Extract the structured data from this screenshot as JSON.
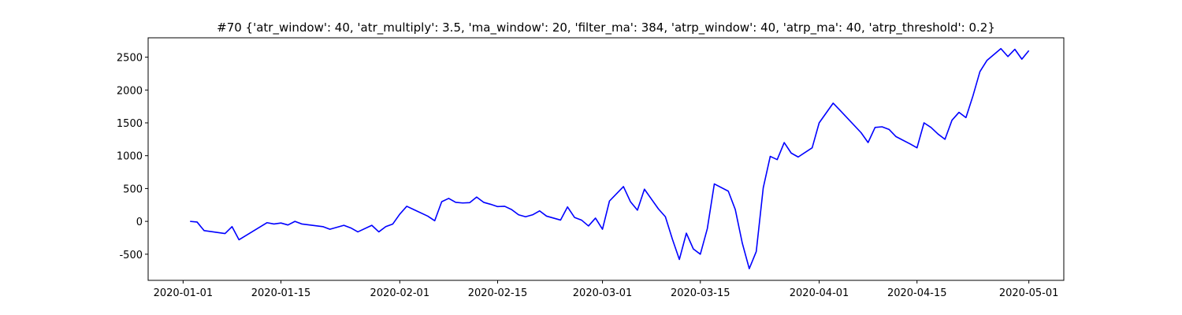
{
  "chart_data": {
    "type": "line",
    "title": "#70 {'atr_window': 40, 'atr_multiply': 3.5, 'ma_window': 20, 'filter_ma': 384, 'atrp_window': 40, 'atrp_ma': 40, 'atrp_threshold': 0.2}",
    "x": [
      "2020-01-02",
      "2020-01-03",
      "2020-01-04",
      "2020-01-07",
      "2020-01-08",
      "2020-01-09",
      "2020-01-13",
      "2020-01-14",
      "2020-01-15",
      "2020-01-16",
      "2020-01-17",
      "2020-01-18",
      "2020-01-21",
      "2020-01-22",
      "2020-01-24",
      "2020-01-25",
      "2020-01-26",
      "2020-01-28",
      "2020-01-29",
      "2020-01-30",
      "2020-01-31",
      "2020-02-01",
      "2020-02-02",
      "2020-02-03",
      "2020-02-05",
      "2020-02-06",
      "2020-02-07",
      "2020-02-08",
      "2020-02-09",
      "2020-02-10",
      "2020-02-11",
      "2020-02-12",
      "2020-02-13",
      "2020-02-14",
      "2020-02-15",
      "2020-02-16",
      "2020-02-17",
      "2020-02-18",
      "2020-02-19",
      "2020-02-20",
      "2020-02-21",
      "2020-02-22",
      "2020-02-24",
      "2020-02-25",
      "2020-02-26",
      "2020-02-27",
      "2020-02-28",
      "2020-02-29",
      "2020-03-01",
      "2020-03-02",
      "2020-03-04",
      "2020-03-05",
      "2020-03-06",
      "2020-03-07",
      "2020-03-09",
      "2020-03-10",
      "2020-03-11",
      "2020-03-12",
      "2020-03-13",
      "2020-03-14",
      "2020-03-15",
      "2020-03-16",
      "2020-03-17",
      "2020-03-19",
      "2020-03-20",
      "2020-03-21",
      "2020-03-22",
      "2020-03-23",
      "2020-03-24",
      "2020-03-25",
      "2020-03-26",
      "2020-03-27",
      "2020-03-28",
      "2020-03-29",
      "2020-03-31",
      "2020-04-01",
      "2020-04-03",
      "2020-04-04",
      "2020-04-07",
      "2020-04-08",
      "2020-04-09",
      "2020-04-10",
      "2020-04-11",
      "2020-04-12",
      "2020-04-14",
      "2020-04-15",
      "2020-04-16",
      "2020-04-17",
      "2020-04-18",
      "2020-04-19",
      "2020-04-20",
      "2020-04-21",
      "2020-04-22",
      "2020-04-23",
      "2020-04-24",
      "2020-04-25",
      "2020-04-27",
      "2020-04-28",
      "2020-04-29",
      "2020-04-30",
      "2020-05-01"
    ],
    "series": [
      {
        "color": "#0000ff",
        "values": [
          0,
          -10,
          -140,
          -185,
          -80,
          -280,
          -20,
          -40,
          -25,
          -55,
          0,
          -40,
          -80,
          -120,
          -60,
          -100,
          -160,
          -60,
          -160,
          -80,
          -40,
          110,
          230,
          180,
          80,
          10,
          300,
          350,
          290,
          280,
          285,
          370,
          290,
          260,
          225,
          230,
          180,
          100,
          70,
          100,
          160,
          80,
          20,
          220,
          60,
          20,
          -70,
          50,
          -120,
          310,
          530,
          300,
          170,
          490,
          190,
          70,
          -270,
          -580,
          -180,
          -420,
          -500,
          -110,
          570,
          460,
          180,
          -330,
          -720,
          -460,
          510,
          990,
          940,
          1200,
          1040,
          980,
          1120,
          1500,
          1800,
          1690,
          1350,
          1200,
          1430,
          1440,
          1400,
          1290,
          1180,
          1120,
          1500,
          1430,
          1330,
          1250,
          1540,
          1660,
          1580,
          1910,
          2280,
          2450,
          2630,
          2510,
          2620,
          2470,
          2600
        ]
      }
    ],
    "xlim": [
      "2019-12-27",
      "2020-05-06"
    ],
    "xticks": [
      "2020-01-01",
      "2020-01-15",
      "2020-02-01",
      "2020-02-15",
      "2020-03-01",
      "2020-03-15",
      "2020-04-01",
      "2020-04-15",
      "2020-05-01"
    ],
    "ylim": [
      -898,
      2795
    ],
    "yticks": [
      -500,
      0,
      500,
      1000,
      1500,
      2000,
      2500
    ]
  }
}
